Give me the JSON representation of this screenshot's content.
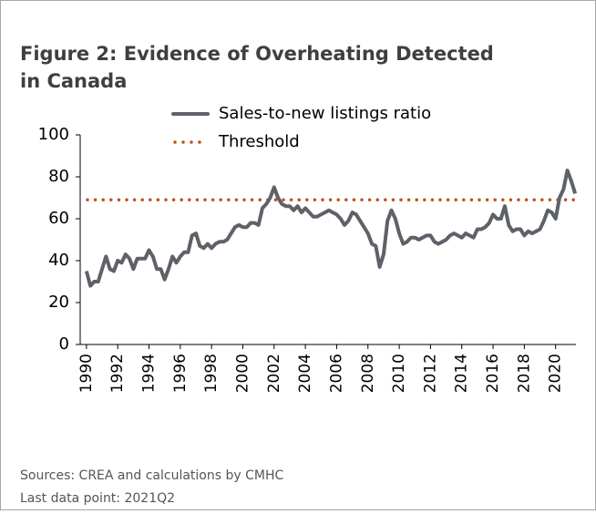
{
  "chart_data": {
    "type": "line",
    "title_lines": [
      "Figure 2: Evidence of Overheating Detected",
      "in Canada"
    ],
    "x": [
      1990,
      1990.25,
      1990.5,
      1990.75,
      1991,
      1991.25,
      1991.5,
      1991.75,
      1992,
      1992.25,
      1992.5,
      1992.75,
      1993,
      1993.25,
      1993.5,
      1993.75,
      1994,
      1994.25,
      1994.5,
      1994.75,
      1995,
      1995.25,
      1995.5,
      1995.75,
      1996,
      1996.25,
      1996.5,
      1996.75,
      1997,
      1997.25,
      1997.5,
      1997.75,
      1998,
      1998.25,
      1998.5,
      1998.75,
      1999,
      1999.25,
      1999.5,
      1999.75,
      2000,
      2000.25,
      2000.5,
      2000.75,
      2001,
      2001.25,
      2001.5,
      2001.75,
      2002,
      2002.25,
      2002.5,
      2002.75,
      2003,
      2003.25,
      2003.5,
      2003.75,
      2004,
      2004.25,
      2004.5,
      2004.75,
      2005,
      2005.25,
      2005.5,
      2005.75,
      2006,
      2006.25,
      2006.5,
      2006.75,
      2007,
      2007.25,
      2007.5,
      2007.75,
      2008,
      2008.25,
      2008.5,
      2008.75,
      2009,
      2009.25,
      2009.5,
      2009.75,
      2010,
      2010.25,
      2010.5,
      2010.75,
      2011,
      2011.25,
      2011.5,
      2011.75,
      2012,
      2012.25,
      2012.5,
      2012.75,
      2013,
      2013.25,
      2013.5,
      2013.75,
      2014,
      2014.25,
      2014.5,
      2014.75,
      2015,
      2015.25,
      2015.5,
      2015.75,
      2016,
      2016.25,
      2016.5,
      2016.75,
      2017,
      2017.25,
      2017.5,
      2017.75,
      2018,
      2018.25,
      2018.5,
      2018.75,
      2019,
      2019.25,
      2019.5,
      2019.75,
      2020,
      2020.25,
      2020.5,
      2020.75,
      2021,
      2021.25
    ],
    "series": [
      {
        "name": "Sales-to-new listings ratio",
        "color": "#5e6268",
        "values": [
          35,
          28,
          30,
          30,
          36,
          42,
          36,
          35,
          40,
          39,
          43,
          41,
          36,
          41,
          41,
          41,
          45,
          42,
          36,
          36,
          31,
          36,
          42,
          39,
          42,
          44,
          44,
          52,
          53,
          47,
          46,
          48,
          46,
          48,
          49,
          49,
          50,
          53,
          56,
          57,
          56,
          56,
          58,
          58,
          57,
          65,
          67,
          70,
          75,
          70,
          67,
          66,
          66,
          64,
          66,
          63,
          65,
          63,
          61,
          61,
          62,
          63,
          64,
          63,
          62,
          60,
          57,
          59,
          63,
          62,
          59,
          56,
          53,
          48,
          47,
          37,
          43,
          59,
          64,
          60,
          53,
          48,
          49,
          51,
          51,
          50,
          51,
          52,
          52,
          49,
          48,
          49,
          50,
          52,
          53,
          52,
          51,
          53,
          52,
          51,
          55,
          55,
          56,
          58,
          62,
          60,
          60,
          66,
          57,
          54,
          55,
          55,
          52,
          54,
          53,
          54,
          55,
          59,
          64,
          63,
          60,
          70,
          74,
          83,
          78,
          72
        ]
      }
    ],
    "threshold": {
      "name": "Threshold",
      "value": 69,
      "color": "#c0501a"
    },
    "xlim": [
      1989.6,
      2021.3
    ],
    "xticks": [
      1990,
      1992,
      1994,
      1996,
      1998,
      2000,
      2002,
      2004,
      2006,
      2008,
      2010,
      2012,
      2014,
      2016,
      2018,
      2020
    ],
    "ylim": [
      0,
      100
    ],
    "yticks": [
      0,
      20,
      40,
      60,
      80,
      100
    ],
    "notes": [
      "Sources: CREA and calculations by CMHC",
      "Last data point: 2021Q2"
    ]
  }
}
